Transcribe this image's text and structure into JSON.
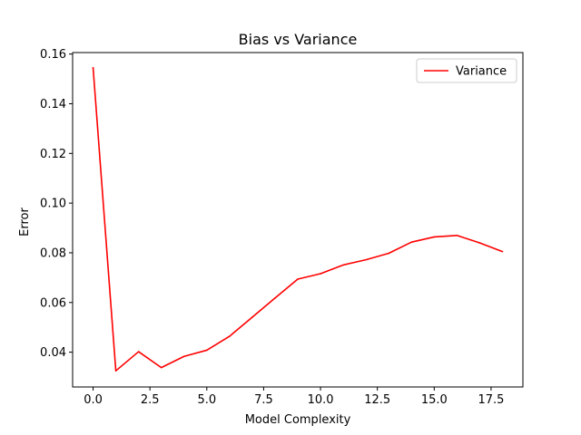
{
  "chart_data": {
    "type": "line",
    "title": "Bias vs Variance",
    "xlabel": "Model Complexity",
    "ylabel": "Error",
    "x": [
      0,
      1,
      2,
      3,
      4,
      5,
      6,
      7,
      8,
      9,
      10,
      11,
      12,
      13,
      14,
      15,
      16,
      17,
      18
    ],
    "series": [
      {
        "name": "Variance",
        "color": "#ff0000",
        "values": [
          0.1545,
          0.0325,
          0.0402,
          0.0338,
          0.0383,
          0.0408,
          0.0464,
          0.0541,
          0.0618,
          0.0694,
          0.0716,
          0.0751,
          0.0772,
          0.0798,
          0.0843,
          0.0864,
          0.087,
          0.084,
          0.0805
        ]
      }
    ],
    "xlim": [
      -0.9,
      18.9
    ],
    "ylim": [
      0.026,
      0.1606
    ],
    "xticks": [
      0.0,
      2.5,
      5.0,
      7.5,
      10.0,
      12.5,
      15.0,
      17.5
    ],
    "xtick_labels": [
      "0.0",
      "2.5",
      "5.0",
      "7.5",
      "10.0",
      "12.5",
      "15.0",
      "17.5"
    ],
    "yticks": [
      0.04,
      0.06,
      0.08,
      0.1,
      0.12,
      0.14,
      0.16
    ],
    "ytick_labels": [
      "0.04",
      "0.06",
      "0.08",
      "0.10",
      "0.12",
      "0.14",
      "0.16"
    ],
    "grid": false,
    "legend_position": "top-right"
  }
}
